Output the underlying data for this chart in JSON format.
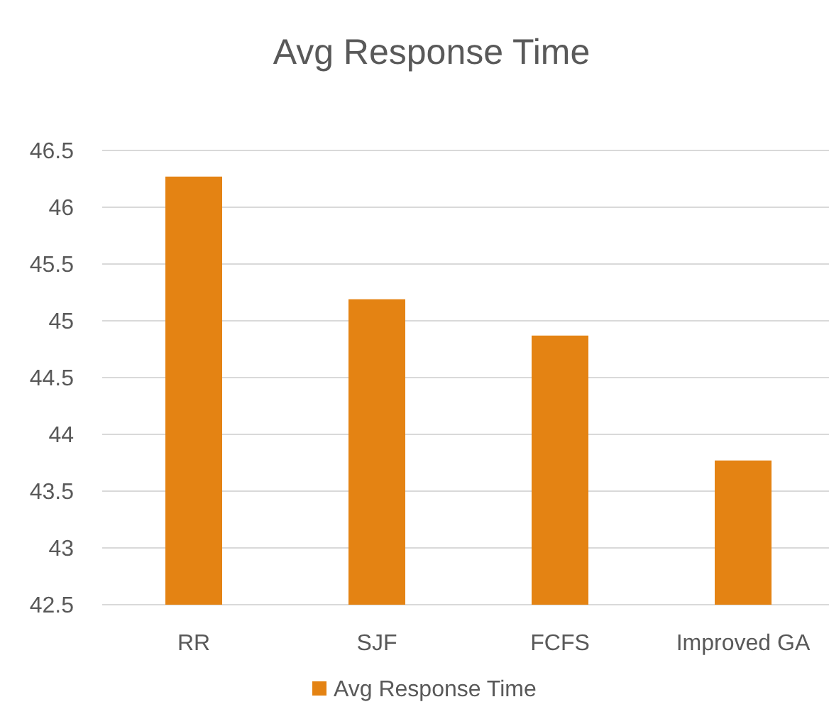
{
  "chart_data": {
    "type": "bar",
    "title": "Avg Response Time",
    "categories": [
      "RR",
      "SJF",
      "FCFS",
      "Improved GA"
    ],
    "series": [
      {
        "name": "Avg Response Time",
        "color": "#e48313",
        "values": [
          46.27,
          45.19,
          44.87,
          43.77
        ]
      }
    ],
    "ylim": [
      42.5,
      46.5
    ],
    "yticks": [
      42.5,
      43,
      43.5,
      44,
      44.5,
      45,
      45.5,
      46,
      46.5
    ],
    "grid": "y",
    "legend": "bottom"
  }
}
